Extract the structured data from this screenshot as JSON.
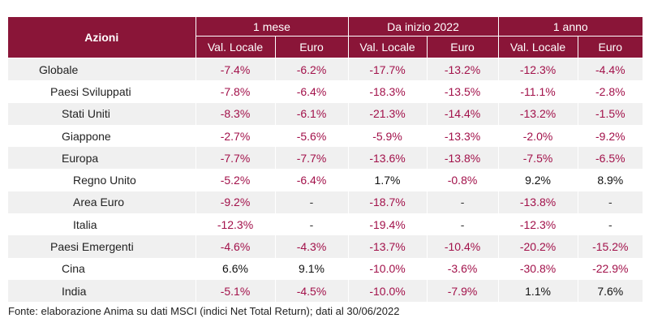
{
  "header": {
    "azioni": "Azioni",
    "groups": [
      "1 mese",
      "Da inizio 2022",
      "1 anno"
    ],
    "subcols": [
      "Val. Locale",
      "Euro",
      "Val. Locale",
      "Euro",
      "Val. Locale",
      "Euro"
    ]
  },
  "rows": [
    {
      "label": "Globale",
      "level": 0,
      "values": [
        "-7.4%",
        "-6.2%",
        "-17.7%",
        "-13.2%",
        "-12.3%",
        "-4.4%"
      ]
    },
    {
      "label": "Paesi Sviluppati",
      "level": 1,
      "values": [
        "-7.8%",
        "-6.4%",
        "-18.3%",
        "-13.5%",
        "-11.1%",
        "-2.8%"
      ]
    },
    {
      "label": "Stati Uniti",
      "level": 2,
      "values": [
        "-8.3%",
        "-6.1%",
        "-21.3%",
        "-14.4%",
        "-13.2%",
        "-1.5%"
      ]
    },
    {
      "label": "Giappone",
      "level": 2,
      "values": [
        "-2.7%",
        "-5.6%",
        "-5.9%",
        "-13.3%",
        "-2.0%",
        "-9.2%"
      ]
    },
    {
      "label": "Europa",
      "level": 2,
      "values": [
        "-7.7%",
        "-7.7%",
        "-13.6%",
        "-13.8%",
        "-7.5%",
        "-6.5%"
      ]
    },
    {
      "label": "Regno Unito",
      "level": 3,
      "values": [
        "-5.2%",
        "-6.4%",
        "1.7%",
        "-0.8%",
        "9.2%",
        "8.9%"
      ]
    },
    {
      "label": "Area Euro",
      "level": 3,
      "values": [
        "-9.2%",
        "-",
        "-18.7%",
        "-",
        "-13.8%",
        "-"
      ]
    },
    {
      "label": "Italia",
      "level": 3,
      "values": [
        "-12.3%",
        "-",
        "-19.4%",
        "-",
        "-12.3%",
        "-"
      ]
    },
    {
      "label": "Paesi Emergenti",
      "level": 1,
      "values": [
        "-4.6%",
        "-4.3%",
        "-13.7%",
        "-10.4%",
        "-20.2%",
        "-15.2%"
      ]
    },
    {
      "label": "Cina",
      "level": 2,
      "values": [
        "6.6%",
        "9.1%",
        "-10.0%",
        "-3.6%",
        "-30.8%",
        "-22.9%"
      ]
    },
    {
      "label": "India",
      "level": 2,
      "values": [
        "-5.1%",
        "-4.5%",
        "-10.0%",
        "-7.9%",
        "1.1%",
        "7.6%"
      ]
    }
  ],
  "footnote": "Fonte: elaborazione Anima su dati MSCI (indici Net Total Return); dati al 30/06/2022",
  "colors": {
    "header_bg": "#8a1538",
    "negative": "#a2114a",
    "row_alt": "#f0f0f0"
  }
}
